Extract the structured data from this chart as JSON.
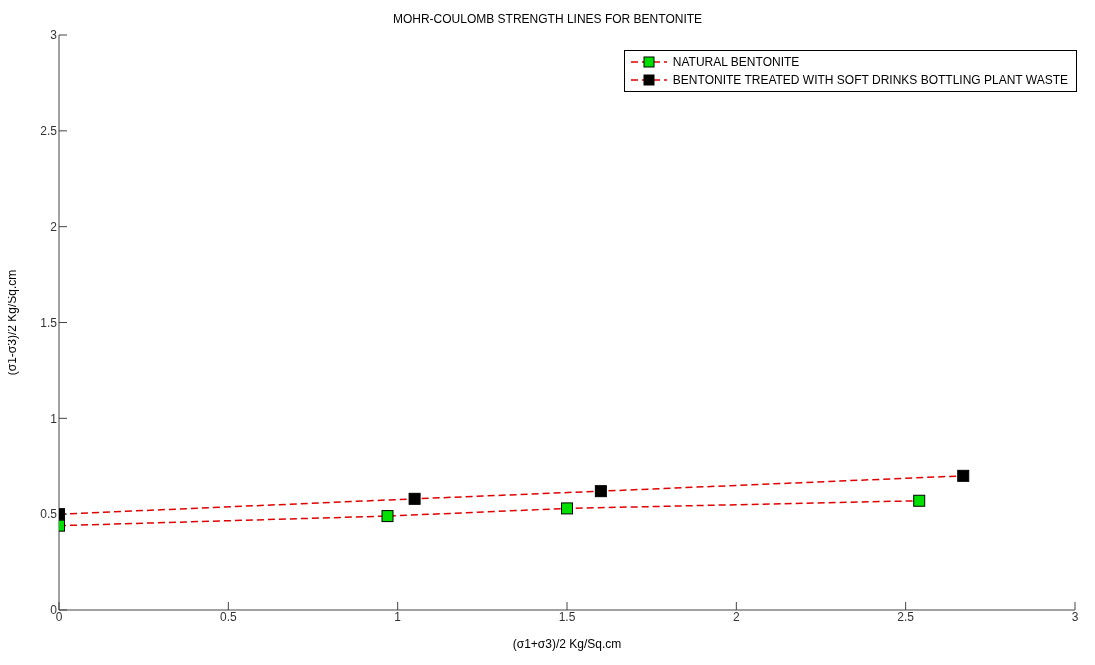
{
  "chart_data": {
    "type": "line",
    "title": "MOHR-COULOMB STRENGTH LINES FOR BENTONITE",
    "xlabel": "(σ1+σ3)/2 Kg/Sq.cm",
    "ylabel": "(σ1-σ3)/2 Kg/Sq.cm",
    "series": [
      {
        "name": "NATURAL BENTONITE",
        "color": "#e00000",
        "colors": [
          "#00e000",
          "#00e000",
          "#00e000",
          "#00e000"
        ],
        "x": [
          0,
          0.97,
          1.5,
          2.54
        ],
        "values": [
          0.44,
          0.49,
          0.53,
          0.57
        ]
      },
      {
        "name": "BENTONITE TREATED WITH SOFT DRINKS BOTTLING PLANT WASTE",
        "color": "#e00000",
        "colors": [
          "#000000",
          "#000000",
          "#000000",
          "#000000"
        ],
        "x": [
          0,
          1.05,
          1.6,
          2.67
        ],
        "values": [
          0.5,
          0.58,
          0.62,
          0.7
        ]
      }
    ],
    "xlim": [
      0,
      3
    ],
    "xticks": [
      0,
      0.5,
      1,
      1.5,
      2,
      2.5,
      3
    ],
    "ylim": [
      0,
      3
    ],
    "yticks": [
      0,
      0.5,
      1,
      1.5,
      2,
      2.5,
      3
    ],
    "grid": false,
    "legend": "top right",
    "marker": "square",
    "line_style": "dashed"
  }
}
